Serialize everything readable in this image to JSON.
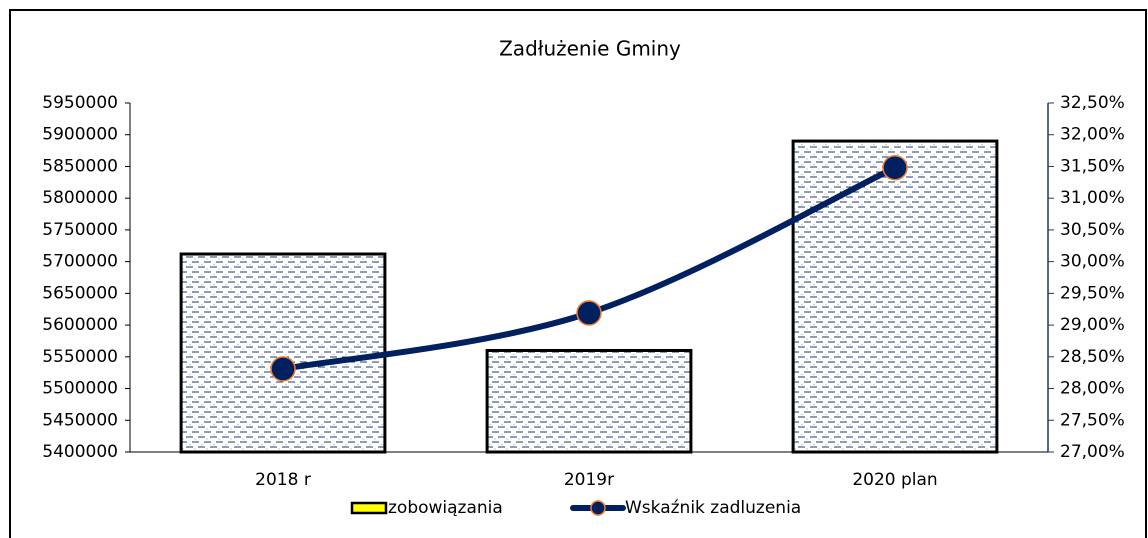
{
  "chart_data": {
    "type": "bar",
    "title": "Zadłużenie Gminy",
    "categories": [
      "2018 r",
      "2019r",
      "2020 plan"
    ],
    "series": [
      {
        "name": "zobowiązania",
        "type": "bar",
        "values": [
          5712000,
          5560000,
          5890000
        ]
      },
      {
        "name": "Wskaźnik zadluzenia",
        "type": "line",
        "axis": "y2",
        "color": "#002060",
        "marker_edge": "#ed7d31",
        "values": [
          28.31,
          29.19,
          31.48
        ]
      }
    ],
    "ylim": [
      5400000,
      5950000
    ],
    "yticks": [
      5400000,
      5450000,
      5500000,
      5550000,
      5600000,
      5650000,
      5700000,
      5750000,
      5800000,
      5850000,
      5900000,
      5950000
    ],
    "y2lim": [
      27,
      32.5
    ],
    "y2ticks": [
      {
        "value": 27,
        "label": "27,00%"
      },
      {
        "value": 27.5,
        "label": "27,50%"
      },
      {
        "value": 28,
        "label": "28,00%"
      },
      {
        "value": 28.5,
        "label": "28,50%"
      },
      {
        "value": 29,
        "label": "29,00%"
      },
      {
        "value": 29.5,
        "label": "29,50%"
      },
      {
        "value": 30,
        "label": "30,00%"
      },
      {
        "value": 30.5,
        "label": "30,50%"
      },
      {
        "value": 31,
        "label": "31,00%"
      },
      {
        "value": 31.5,
        "label": "31,50%"
      },
      {
        "value": 32,
        "label": "32,00%"
      },
      {
        "value": 32.5,
        "label": "32,50%"
      }
    ],
    "legend": "bottom"
  }
}
